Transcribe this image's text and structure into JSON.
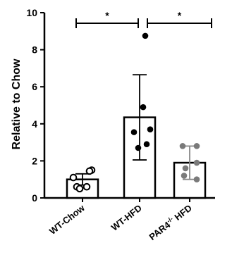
{
  "chart_data": {
    "type": "bar",
    "title": "",
    "xlabel": "",
    "ylabel": "Relative to Chow",
    "ylim": [
      0,
      10
    ],
    "yticks": [
      "0",
      "2",
      "4",
      "6",
      "8",
      "10"
    ],
    "categories": [
      "WT-Chow",
      "WT-HFD",
      "PAR4-/- HFD"
    ],
    "category_label_parts": [
      {
        "main": "WT-Chow",
        "sup": "",
        "tail": ""
      },
      {
        "main": "WT-HFD",
        "sup": "",
        "tail": ""
      },
      {
        "main": "PAR4",
        "sup": "-/-",
        "tail": " HFD"
      }
    ],
    "values": [
      1.0,
      4.35,
      1.9
    ],
    "error": [
      0.3,
      2.3,
      0.9
    ],
    "points": [
      [
        1.1,
        0.6,
        0.5,
        0.6,
        1.5,
        1.45
      ],
      [
        8.75,
        4.9,
        3.7,
        2.7,
        2.9,
        3.55
      ],
      [
        2.8,
        2.8,
        1.9,
        1.2,
        1.0,
        1.6
      ]
    ],
    "point_styles": [
      "open",
      "filled",
      "gray"
    ],
    "significance": [
      {
        "from": 0,
        "to": 1,
        "label": "*"
      },
      {
        "from": 1,
        "to": 2,
        "label": "*"
      }
    ],
    "grid": false,
    "legend": false,
    "colors": {
      "bar_fill": "#ffffff",
      "stroke": "#000000",
      "error_gray": "#888888",
      "point_gray": "#7a7a7a"
    }
  }
}
